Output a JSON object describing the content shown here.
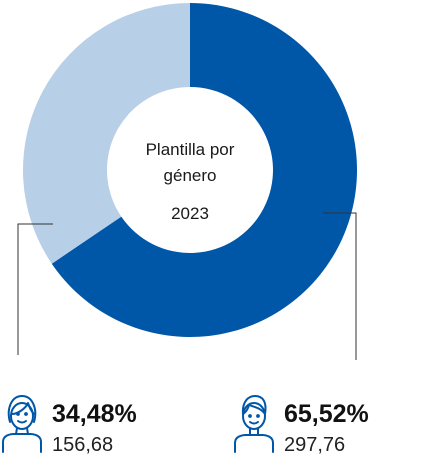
{
  "chart_data": {
    "type": "pie",
    "title_lines": [
      "Plantilla por",
      "género"
    ],
    "year": "2023",
    "slices": [
      {
        "label": "Mujeres",
        "percent_label": "34,48%",
        "percent": 34.48,
        "count": "156,68",
        "color": "#b8cfe8",
        "icon": "female-person-icon"
      },
      {
        "label": "Hombres",
        "percent_label": "65,52%",
        "percent": 65.52,
        "count": "297,76",
        "color": "#0057a8",
        "icon": "male-person-icon"
      }
    ]
  },
  "colors": {
    "leader_line": "#333333",
    "icon_stroke": "#0057a8"
  }
}
